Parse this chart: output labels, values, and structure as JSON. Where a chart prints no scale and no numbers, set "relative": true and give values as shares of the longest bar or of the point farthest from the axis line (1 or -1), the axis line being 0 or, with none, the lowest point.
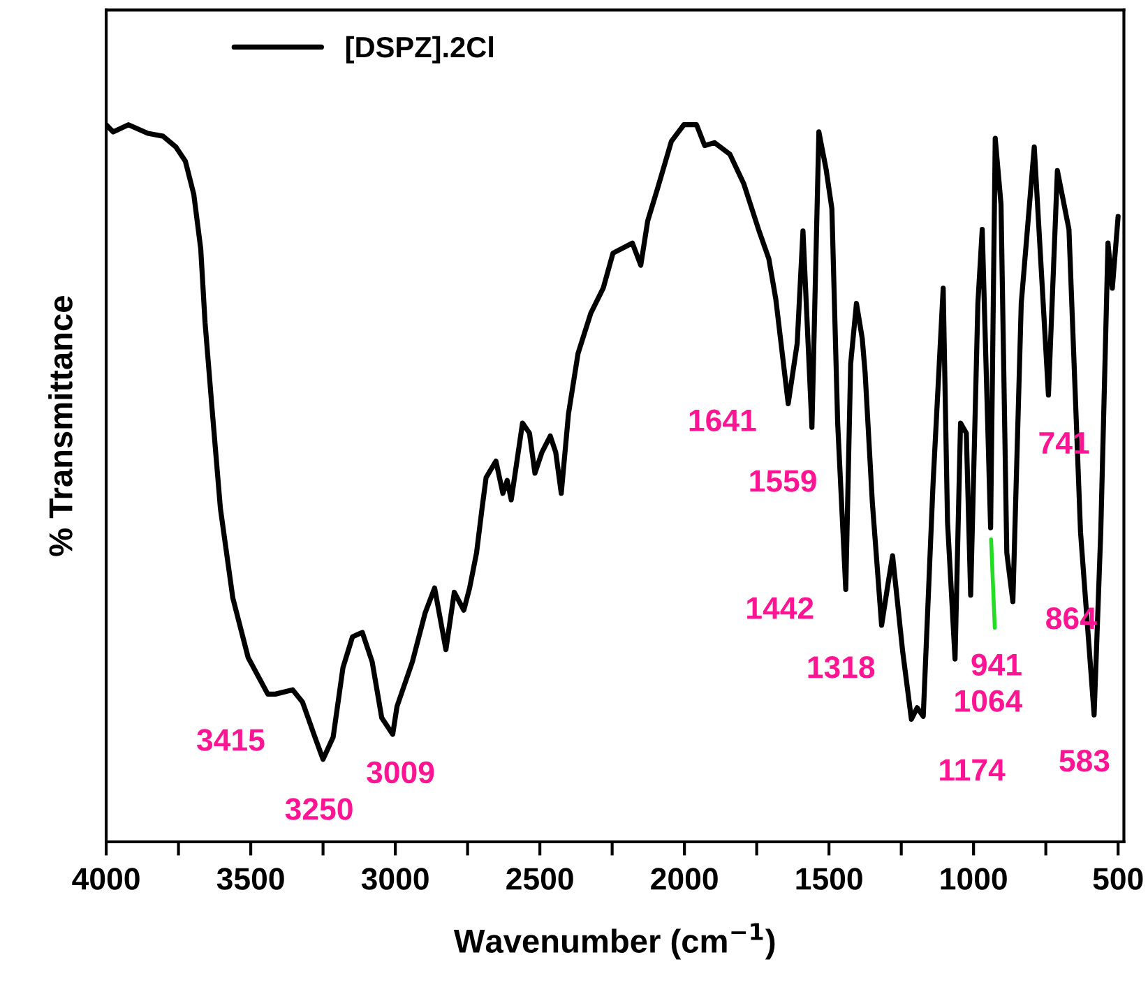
{
  "chart_data": {
    "type": "line",
    "relative": true,
    "xlabel": "Wavenumber (cm$^{−1}$)",
    "ylabel": "% Transmittance",
    "legend": "top left",
    "grid": false,
    "marker": "none",
    "line_style": "solid",
    "xlim": [
      4000,
      480
    ],
    "xticks": [
      4000,
      {
        "value": 3750,
        "label": null
      },
      3500,
      {
        "value": 3250,
        "label": null
      },
      3000,
      {
        "value": 2750,
        "label": null
      },
      2500,
      {
        "value": 2250,
        "label": null
      },
      2000,
      {
        "value": 1750,
        "label": null
      },
      1500,
      {
        "value": 1250,
        "label": null
      },
      1000,
      {
        "value": 750,
        "label": null
      },
      500
    ],
    "x": [
      4000,
      3976,
      3923,
      3856,
      3803,
      3759,
      3726,
      3697,
      3673,
      3658,
      3634,
      3605,
      3562,
      3509,
      3441,
      3415,
      3355,
      3321,
      3278,
      3250,
      3215,
      3181,
      3148,
      3114,
      3080,
      3047,
      3009,
      2994,
      2941,
      2897,
      2864,
      2825,
      2796,
      2763,
      2743,
      2719,
      2700,
      2686,
      2652,
      2628,
      2613,
      2599,
      2580,
      2560,
      2536,
      2517,
      2493,
      2464,
      2445,
      2426,
      2401,
      2368,
      2324,
      2281,
      2247,
      2180,
      2151,
      2127,
      2093,
      2045,
      2002,
      1958,
      1930,
      1896,
      1843,
      1795,
      1742,
      1708,
      1684,
      1641,
      1610,
      1590,
      1559,
      1535,
      1510,
      1490,
      1470,
      1442,
      1425,
      1405,
      1385,
      1375,
      1350,
      1318,
      1295,
      1280,
      1245,
      1215,
      1195,
      1174,
      1140,
      1105,
      1090,
      1064,
      1045,
      1025,
      1010,
      985,
      970,
      941,
      925,
      905,
      885,
      864,
      835,
      790,
      741,
      710,
      670,
      630,
      583,
      560,
      535,
      520,
      500
    ],
    "series": [
      {
        "name": "[DSPZ].2Cl",
        "color": "#000000",
        "values": [
          1,
          0.99,
          1,
          0.988,
          0.984,
          0.969,
          0.949,
          0.903,
          0.827,
          0.724,
          0.605,
          0.465,
          0.34,
          0.257,
          0.206,
          0.206,
          0.212,
          0.195,
          0.146,
          0.115,
          0.146,
          0.243,
          0.286,
          0.292,
          0.251,
          0.173,
          0.15,
          0.189,
          0.251,
          0.319,
          0.354,
          0.268,
          0.348,
          0.323,
          0.354,
          0.403,
          0.465,
          0.508,
          0.531,
          0.486,
          0.504,
          0.477,
          0.529,
          0.584,
          0.57,
          0.514,
          0.543,
          0.566,
          0.543,
          0.486,
          0.597,
          0.681,
          0.737,
          0.772,
          0.821,
          0.835,
          0.804,
          0.866,
          0.911,
          0.977,
          1,
          1,
          0.971,
          0.975,
          0.959,
          0.918,
          0.852,
          0.813,
          0.757,
          0.611,
          0.695,
          0.852,
          0.578,
          0.99,
          0.938,
          0.883,
          0.584,
          0.352,
          0.667,
          0.751,
          0.702,
          0.654,
          0.473,
          0.302,
          0.362,
          0.399,
          0.265,
          0.171,
          0.187,
          0.175,
          0.5,
          0.772,
          0.446,
          0.255,
          0.584,
          0.57,
          0.344,
          0.751,
          0.854,
          0.438,
          0.981,
          0.889,
          0.403,
          0.335,
          0.751,
          0.969,
          0.623,
          0.936,
          0.854,
          0.432,
          0.177,
          0.432,
          0.835,
          0.772,
          0.872
        ]
      }
    ],
    "annotations": [
      {
        "text": "3415",
        "x": 3415,
        "y": 0.206
      },
      {
        "text": "3250",
        "x": 3250,
        "y": 0.115
      },
      {
        "text": "3009",
        "x": 3009,
        "y": 0.15
      },
      {
        "text": "1641",
        "x": 1641,
        "y": 0.611
      },
      {
        "text": "1559",
        "x": 1559,
        "y": 0.578
      },
      {
        "text": "1442",
        "x": 1442,
        "y": 0.352
      },
      {
        "text": "1318",
        "x": 1318,
        "y": 0.302
      },
      {
        "text": "1174",
        "x": 1174,
        "y": 0.175
      },
      {
        "text": "1064",
        "x": 1064,
        "y": 0.255
      },
      {
        "text": "941",
        "x": 941,
        "y": 0.438
      },
      {
        "text": "864",
        "x": 864,
        "y": 0.335
      },
      {
        "text": "741",
        "x": 741,
        "y": 0.623
      },
      {
        "text": "583",
        "x": 583,
        "y": 0.177
      }
    ]
  }
}
